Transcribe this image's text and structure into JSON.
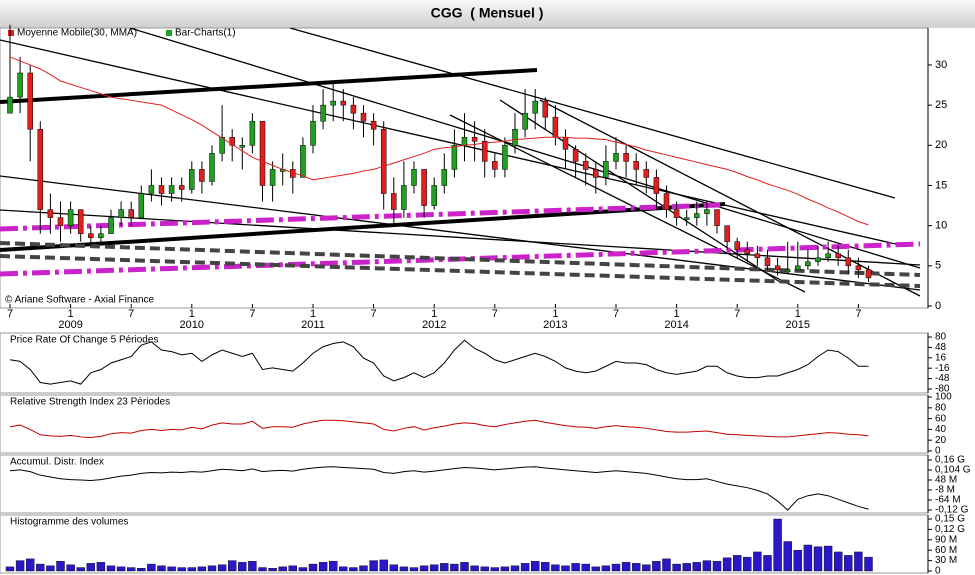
{
  "chart_data": [
    {
      "type": "ohlc",
      "title": "CGG  ( Mensuel )",
      "annotation": "© Ariane Software - Axial Finance",
      "categories": [
        "7",
        null,
        null,
        null,
        null,
        null,
        "1",
        null,
        null,
        null,
        null,
        null,
        "7",
        null,
        null,
        null,
        null,
        null,
        "1",
        null,
        null,
        null,
        null,
        null,
        "7",
        null,
        null,
        null,
        null,
        null,
        "1",
        null,
        null,
        null,
        null,
        null,
        "7",
        null,
        null,
        null,
        null,
        null,
        "1",
        null,
        null,
        null,
        null,
        null,
        "7",
        null,
        null,
        null,
        null,
        null,
        "1",
        null,
        null,
        null,
        null,
        null,
        "7",
        null,
        null,
        null,
        null,
        null,
        "1",
        null,
        null,
        null,
        null,
        null,
        "7",
        null,
        null,
        null,
        null,
        null,
        "1",
        null,
        null,
        null,
        null,
        null,
        "7",
        null
      ],
      "year_labels": [
        null,
        null,
        null,
        null,
        null,
        null,
        "2009",
        null,
        null,
        null,
        null,
        null,
        null,
        null,
        null,
        null,
        null,
        null,
        "2010",
        null,
        null,
        null,
        null,
        null,
        null,
        null,
        null,
        null,
        null,
        null,
        "2011",
        null,
        null,
        null,
        null,
        null,
        null,
        null,
        null,
        null,
        null,
        null,
        "2012",
        null,
        null,
        null,
        null,
        null,
        null,
        null,
        null,
        null,
        null,
        null,
        "2013",
        null,
        null,
        null,
        null,
        null,
        null,
        null,
        null,
        null,
        null,
        null,
        "2014",
        null,
        null,
        null,
        null,
        null,
        null,
        null,
        null,
        null,
        null,
        null,
        "2015",
        null,
        null,
        null,
        null,
        null,
        null,
        null
      ],
      "series": [
        {
          "name": "Moyenne Mobile(30, MMA)",
          "color": "#e02020",
          "values": [
            31,
            30.5,
            30,
            29.5,
            28.8,
            28,
            27.6,
            27.2,
            26.8,
            26.4,
            26,
            25.8,
            25.6,
            25.4,
            25.2,
            25,
            24.4,
            23.8,
            23.2,
            22.5,
            21.7,
            20.9,
            20.1,
            19.3,
            18.5,
            18,
            17.5,
            17,
            16.6,
            16.2,
            15.7,
            15.9,
            16.1,
            16.3,
            16.5,
            16.8,
            17,
            17.4,
            17.8,
            18.2,
            18.6,
            19,
            19.5,
            19.7,
            19.8,
            20,
            20.1,
            20.3,
            20.4,
            20.5,
            20.7,
            20.8,
            20.9,
            21,
            21,
            21,
            20.9,
            20.9,
            20.8,
            20.7,
            20.4,
            20.1,
            19.8,
            19.4,
            19.1,
            18.8,
            18.5,
            18.2,
            17.9,
            17.6,
            17.3,
            17,
            16.6,
            16.1,
            15.7,
            15.2,
            14.8,
            14.4,
            13.9,
            13.3,
            12.8,
            12.2,
            11.7,
            11.1,
            10.5,
            10.1
          ]
        },
        {
          "name": "Bar-Charts(1)",
          "color": "#20a020",
          "down_color": "#e02020",
          "close": [
            26,
            29,
            22,
            12,
            11,
            10,
            12,
            9,
            8.5,
            9,
            11,
            12,
            11,
            14,
            15,
            14,
            15,
            14.5,
            17,
            15.5,
            19,
            21,
            20,
            20,
            23,
            15,
            17,
            17,
            16,
            20,
            23,
            25,
            25.5,
            25,
            24,
            23,
            22,
            14,
            12,
            15,
            17,
            12.5,
            15,
            17,
            20,
            21,
            20.5,
            18,
            17,
            20,
            22,
            24,
            25.5,
            23.5,
            21,
            19.5,
            18,
            17,
            16,
            18,
            19,
            18,
            17,
            16,
            14,
            12,
            11,
            11,
            11.5,
            12,
            10,
            8,
            7,
            6.5,
            6,
            5,
            4.5,
            4.5,
            5,
            5.5,
            6,
            6.5,
            6,
            5,
            4.5,
            3.5
          ],
          "high": [
            35,
            31,
            30,
            23,
            14,
            13,
            13,
            12,
            10,
            10,
            12,
            13,
            13,
            15,
            17,
            16,
            16,
            16,
            18,
            18,
            20,
            25,
            22,
            21,
            24,
            23,
            18,
            19,
            18,
            21,
            25,
            27,
            28,
            27,
            26,
            25,
            24,
            23,
            16,
            18,
            18,
            17,
            16,
            19,
            22,
            24,
            23,
            22,
            19,
            21,
            24,
            27,
            27,
            26,
            25,
            22,
            20,
            19,
            18,
            20,
            21,
            20,
            19,
            18,
            17,
            15,
            13,
            12,
            13,
            13,
            12,
            10,
            8.5,
            8,
            7.5,
            7,
            6,
            8,
            8,
            7,
            7.5,
            8,
            7.5,
            7,
            6,
            5
          ],
          "low": [
            24,
            24,
            18,
            9,
            9,
            8,
            9,
            8,
            7.5,
            8,
            9,
            10,
            10,
            11,
            13,
            12.5,
            13,
            13,
            14,
            14,
            15,
            18,
            18,
            17,
            19,
            13,
            13,
            15,
            14,
            16,
            19,
            22,
            23,
            23,
            22,
            21,
            20,
            12,
            10,
            11,
            14,
            11,
            12,
            14,
            16,
            18,
            18,
            16,
            16,
            16,
            19,
            21,
            22,
            22,
            20,
            17,
            16,
            15,
            14,
            15,
            17,
            16,
            15,
            14,
            12,
            11,
            10,
            10,
            10,
            10,
            9,
            7,
            6,
            5.5,
            5,
            4.5,
            3.8,
            4,
            4.5,
            4.5,
            5,
            5.5,
            5,
            4,
            3.5,
            3
          ]
        }
      ],
      "ylim": [
        -0.25,
        34.6
      ],
      "yticks": [
        0,
        5,
        10,
        15,
        20,
        25,
        30
      ]
    },
    {
      "type": "line",
      "title": "Price Rate Of Change 5 Périodes",
      "color": "#000000",
      "values": [
        10,
        5,
        -20,
        -60,
        -65,
        -60,
        -55,
        -65,
        -30,
        -20,
        0,
        10,
        20,
        55,
        65,
        40,
        35,
        25,
        30,
        5,
        25,
        40,
        30,
        20,
        30,
        -20,
        -15,
        -20,
        -25,
        0,
        30,
        50,
        60,
        65,
        50,
        15,
        0,
        -40,
        -55,
        -45,
        -30,
        -45,
        -30,
        0,
        40,
        70,
        45,
        30,
        10,
        0,
        10,
        20,
        30,
        20,
        5,
        -15,
        -25,
        -30,
        -25,
        -10,
        5,
        0,
        0,
        -5,
        -20,
        -30,
        -35,
        -30,
        -25,
        -10,
        -10,
        -30,
        -40,
        -45,
        -45,
        -40,
        -40,
        -30,
        -20,
        -5,
        20,
        40,
        35,
        15,
        -10,
        -10
      ],
      "ylim": [
        -92.3,
        92.3
      ],
      "yticks": [
        80,
        48,
        16,
        -16,
        -48,
        -80
      ]
    },
    {
      "type": "line",
      "title": "Relative Strength Index 23 Périodes",
      "color": "#c00000",
      "values": [
        45,
        48,
        40,
        30,
        28,
        27,
        29,
        26,
        25,
        27,
        32,
        34,
        33,
        38,
        40,
        38,
        40,
        39,
        44,
        41,
        48,
        52,
        50,
        50,
        55,
        42,
        45,
        45,
        44,
        50,
        54,
        57,
        57,
        56,
        54,
        52,
        50,
        40,
        37,
        42,
        45,
        39,
        43,
        46,
        50,
        52,
        51,
        47,
        45,
        49,
        52,
        55,
        57,
        53,
        50,
        47,
        45,
        44,
        42,
        45,
        47,
        45,
        44,
        42,
        39,
        36,
        35,
        35,
        36,
        37,
        34,
        31,
        30,
        29,
        28,
        27,
        26,
        26,
        28,
        30,
        32,
        34,
        33,
        31,
        30,
        28
      ],
      "ylim": [
        -3.8,
        103.8
      ],
      "yticks": [
        100,
        80,
        60,
        40,
        20,
        0
      ]
    },
    {
      "type": "line",
      "title": "Accumul. Distr. Index",
      "color": "#000000",
      "values": [
        100000000,
        105000000,
        95000000,
        75000000,
        65000000,
        55000000,
        50000000,
        48000000,
        45000000,
        50000000,
        60000000,
        70000000,
        75000000,
        85000000,
        90000000,
        88000000,
        92000000,
        90000000,
        95000000,
        92000000,
        100000000,
        108000000,
        105000000,
        100000000,
        110000000,
        95000000,
        100000000,
        102000000,
        98000000,
        108000000,
        115000000,
        120000000,
        122000000,
        118000000,
        115000000,
        112000000,
        108000000,
        90000000,
        85000000,
        95000000,
        100000000,
        92000000,
        98000000,
        105000000,
        112000000,
        118000000,
        115000000,
        110000000,
        105000000,
        110000000,
        115000000,
        120000000,
        122000000,
        115000000,
        110000000,
        105000000,
        100000000,
        95000000,
        90000000,
        95000000,
        100000000,
        95000000,
        90000000,
        85000000,
        75000000,
        65000000,
        55000000,
        50000000,
        50000000,
        55000000,
        40000000,
        25000000,
        15000000,
        5000000,
        -10000000,
        -30000000,
        -70000000,
        -120000000,
        -60000000,
        -40000000,
        -30000000,
        -40000000,
        -60000000,
        -80000000,
        -100000000,
        -115000000
      ],
      "ylim": [
        -136800000,
        188000000
      ],
      "yticks": [
        {
          "value": 160000000,
          "label": "0,16 G"
        },
        {
          "value": 104000000,
          "label": "0,104 G"
        },
        {
          "value": 48000000,
          "label": "48 M"
        },
        {
          "value": -8000000,
          "label": "-8 M"
        },
        {
          "value": -64000000,
          "label": "-64 M"
        },
        {
          "value": -120000000,
          "label": "-0,12 G"
        }
      ]
    },
    {
      "type": "bar",
      "title": "Histogramme des volumes",
      "color": "#2a18c8",
      "values": [
        12000000,
        30000000,
        35000000,
        20000000,
        15000000,
        28000000,
        18000000,
        10000000,
        22000000,
        25000000,
        15000000,
        12000000,
        10000000,
        8000000,
        20000000,
        15000000,
        12000000,
        10000000,
        10000000,
        12000000,
        15000000,
        18000000,
        30000000,
        25000000,
        28000000,
        10000000,
        8000000,
        12000000,
        15000000,
        10000000,
        20000000,
        25000000,
        28000000,
        12000000,
        10000000,
        15000000,
        30000000,
        32000000,
        18000000,
        12000000,
        10000000,
        15000000,
        18000000,
        22000000,
        20000000,
        25000000,
        15000000,
        12000000,
        10000000,
        12000000,
        15000000,
        22000000,
        28000000,
        25000000,
        18000000,
        15000000,
        22000000,
        20000000,
        12000000,
        15000000,
        20000000,
        25000000,
        22000000,
        18000000,
        28000000,
        35000000,
        20000000,
        22000000,
        25000000,
        30000000,
        28000000,
        38000000,
        45000000,
        40000000,
        55000000,
        45000000,
        150000000,
        85000000,
        60000000,
        75000000,
        70000000,
        72000000,
        55000000,
        45000000,
        55000000,
        40000000
      ],
      "ylim": [
        -5760000,
        161520000
      ],
      "yticks": [
        {
          "value": 150000000,
          "label": "0,15 G"
        },
        {
          "value": 120000000,
          "label": "0,12 G"
        },
        {
          "value": 90000000,
          "label": "90 M"
        },
        {
          "value": 60000000,
          "label": "60 M"
        },
        {
          "value": 30000000,
          "label": "30 M"
        },
        0
      ]
    }
  ]
}
